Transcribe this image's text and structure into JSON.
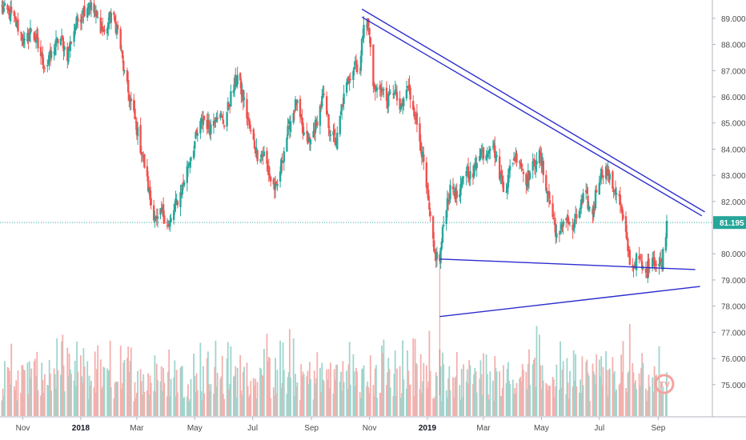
{
  "chart_data": {
    "type": "candlestick",
    "colors": {
      "up": "#26a69a",
      "down": "#ef5350",
      "vol_up": "#9fd5cd",
      "vol_down": "#f3b0ae",
      "trendline": "#2c2ccf",
      "price_line": "#26a69a",
      "price_badge": "#26a69a",
      "axis_text": "#4a4a4a",
      "grid": "#e0e3eb"
    },
    "y_axis": {
      "side": "right",
      "ticks": [
        "89.000",
        "88.000",
        "87.000",
        "86.000",
        "85.000",
        "84.000",
        "83.000",
        "82.000",
        "80.000",
        "79.000",
        "78.000",
        "77.000",
        "76.000",
        "75.000"
      ],
      "range": [
        73.8,
        89.7
      ]
    },
    "x_axis": {
      "ticks": [
        {
          "label": "Nov",
          "date": "2017-11-01",
          "bold": false
        },
        {
          "label": "2018",
          "date": "2018-01-01",
          "bold": true
        },
        {
          "label": "Mar",
          "date": "2018-03-01",
          "bold": false
        },
        {
          "label": "May",
          "date": "2018-05-01",
          "bold": false
        },
        {
          "label": "Jul",
          "date": "2018-07-01",
          "bold": false
        },
        {
          "label": "Sep",
          "date": "2018-09-01",
          "bold": false
        },
        {
          "label": "Nov",
          "date": "2018-11-01",
          "bold": false
        },
        {
          "label": "2019",
          "date": "2019-01-01",
          "bold": true
        },
        {
          "label": "Mar",
          "date": "2019-03-01",
          "bold": false
        },
        {
          "label": "May",
          "date": "2019-05-01",
          "bold": false
        },
        {
          "label": "Jul",
          "date": "2019-07-01",
          "bold": false
        },
        {
          "label": "Sep",
          "date": "2019-09-01",
          "bold": false
        }
      ],
      "range": [
        "2017-10-08",
        "2019-10-28"
      ]
    },
    "price_path": [
      [
        "2017-10-10",
        89.4
      ],
      [
        "2017-10-20",
        89.1
      ],
      [
        "2017-10-28",
        88.6
      ],
      [
        "2017-11-03",
        88.0
      ],
      [
        "2017-11-10",
        88.6
      ],
      [
        "2017-11-18",
        87.8
      ],
      [
        "2017-11-25",
        87.1
      ],
      [
        "2017-12-02",
        87.7
      ],
      [
        "2017-12-10",
        88.3
      ],
      [
        "2017-12-18",
        87.6
      ],
      [
        "2017-12-26",
        88.7
      ],
      [
        "2018-01-02",
        89.2
      ],
      [
        "2018-01-10",
        89.6
      ],
      [
        "2018-01-18",
        89.0
      ],
      [
        "2018-01-26",
        88.4
      ],
      [
        "2018-02-02",
        89.2
      ],
      [
        "2018-02-10",
        88.4
      ],
      [
        "2018-02-17",
        86.6
      ],
      [
        "2018-02-24",
        85.6
      ],
      [
        "2018-03-02",
        84.6
      ],
      [
        "2018-03-09",
        83.4
      ],
      [
        "2018-03-16",
        81.9
      ],
      [
        "2018-03-22",
        81.2
      ],
      [
        "2018-03-28",
        81.6
      ],
      [
        "2018-04-04",
        81.0
      ],
      [
        "2018-04-10",
        81.8
      ],
      [
        "2018-04-17",
        82.4
      ],
      [
        "2018-04-24",
        83.4
      ],
      [
        "2018-05-02",
        84.4
      ],
      [
        "2018-05-10",
        85.2
      ],
      [
        "2018-05-17",
        84.8
      ],
      [
        "2018-05-24",
        85.4
      ],
      [
        "2018-06-01",
        85.0
      ],
      [
        "2018-06-08",
        86.0
      ],
      [
        "2018-06-15",
        86.8
      ],
      [
        "2018-06-22",
        85.8
      ],
      [
        "2018-06-29",
        84.6
      ],
      [
        "2018-07-06",
        83.8
      ],
      [
        "2018-07-13",
        83.8
      ],
      [
        "2018-07-20",
        82.8
      ],
      [
        "2018-07-26",
        82.4
      ],
      [
        "2018-08-02",
        83.8
      ],
      [
        "2018-08-09",
        85.0
      ],
      [
        "2018-08-16",
        85.8
      ],
      [
        "2018-08-23",
        84.6
      ],
      [
        "2018-08-30",
        84.2
      ],
      [
        "2018-09-06",
        85.0
      ],
      [
        "2018-09-13",
        86.0
      ],
      [
        "2018-09-20",
        84.8
      ],
      [
        "2018-09-27",
        84.2
      ],
      [
        "2018-10-04",
        85.8
      ],
      [
        "2018-10-11",
        86.8
      ],
      [
        "2018-10-17",
        87.3
      ],
      [
        "2018-10-22",
        87.0
      ],
      [
        "2018-10-26",
        89.0
      ],
      [
        "2018-10-31",
        88.7
      ],
      [
        "2018-11-06",
        86.2
      ],
      [
        "2018-11-13",
        86.4
      ],
      [
        "2018-11-20",
        85.8
      ],
      [
        "2018-11-27",
        86.3
      ],
      [
        "2018-12-04",
        85.4
      ],
      [
        "2018-12-11",
        86.4
      ],
      [
        "2018-12-18",
        85.5
      ],
      [
        "2018-12-25",
        84.2
      ],
      [
        "2019-01-01",
        82.2
      ],
      [
        "2019-01-08",
        80.0
      ],
      [
        "2019-01-14",
        79.8
      ],
      [
        "2019-01-20",
        81.8
      ],
      [
        "2019-01-27",
        82.6
      ],
      [
        "2019-02-03",
        82.0
      ],
      [
        "2019-02-10",
        83.4
      ],
      [
        "2019-02-17",
        82.8
      ],
      [
        "2019-02-24",
        84.0
      ],
      [
        "2019-03-03",
        83.8
      ],
      [
        "2019-03-10",
        84.4
      ],
      [
        "2019-03-17",
        83.2
      ],
      [
        "2019-03-24",
        82.4
      ],
      [
        "2019-03-31",
        83.6
      ],
      [
        "2019-04-07",
        83.8
      ],
      [
        "2019-04-14",
        82.8
      ],
      [
        "2019-04-21",
        83.2
      ],
      [
        "2019-04-28",
        83.9
      ],
      [
        "2019-05-05",
        82.8
      ],
      [
        "2019-05-12",
        81.6
      ],
      [
        "2019-05-19",
        80.4
      ],
      [
        "2019-05-26",
        81.6
      ],
      [
        "2019-06-02",
        80.8
      ],
      [
        "2019-06-09",
        81.6
      ],
      [
        "2019-06-16",
        82.3
      ],
      [
        "2019-06-23",
        81.4
      ],
      [
        "2019-06-30",
        82.9
      ],
      [
        "2019-07-07",
        83.3
      ],
      [
        "2019-07-14",
        82.6
      ],
      [
        "2019-07-21",
        82.3
      ],
      [
        "2019-07-28",
        80.8
      ],
      [
        "2019-08-04",
        79.4
      ],
      [
        "2019-08-11",
        79.9
      ],
      [
        "2019-08-18",
        79.1
      ],
      [
        "2019-08-25",
        80.0
      ],
      [
        "2019-08-31",
        79.5
      ],
      [
        "2019-09-05",
        79.7
      ],
      [
        "2019-09-10",
        81.2
      ]
    ],
    "last_price": {
      "value": 81.195,
      "label": "81.195"
    },
    "trendlines": [
      {
        "name": "upper-channel-top",
        "x1": "2018-10-24",
        "y1": 89.35,
        "x2": "2019-10-20",
        "y2": 81.6
      },
      {
        "name": "upper-channel-bottom",
        "x1": "2018-10-24",
        "y1": 89.05,
        "x2": "2019-10-17",
        "y2": 81.45
      },
      {
        "name": "support-top",
        "x1": "2019-01-14",
        "y1": 79.8,
        "x2": "2019-10-10",
        "y2": 79.4
      },
      {
        "name": "support-bottom",
        "x1": "2019-01-14",
        "y1": 77.6,
        "x2": "2019-10-15",
        "y2": 78.75
      }
    ],
    "grid": false,
    "legend": "none"
  },
  "watermark": {
    "text": "TV"
  }
}
